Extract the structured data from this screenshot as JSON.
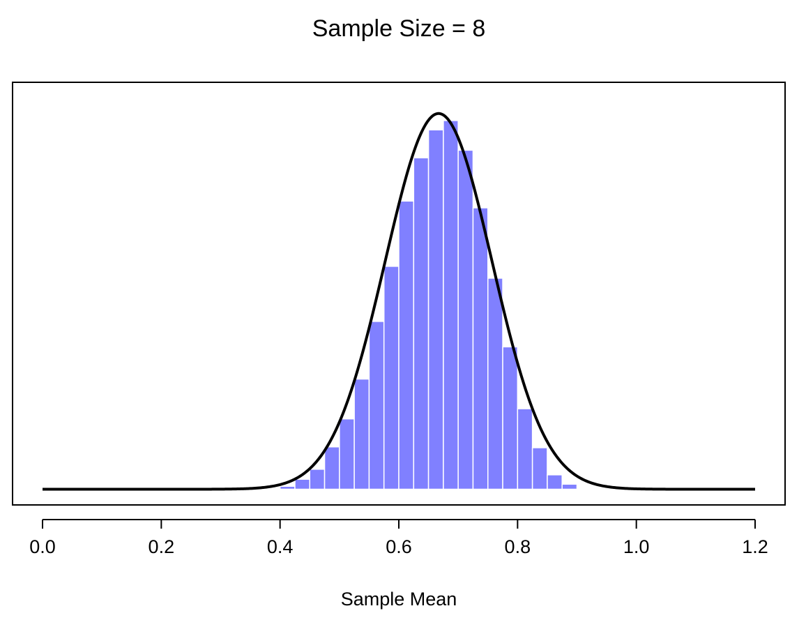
{
  "chart_data": {
    "type": "bar",
    "title": "Sample Size = 8",
    "xlabel": "Sample Mean",
    "ylabel": "",
    "xlim": [
      0,
      1.2
    ],
    "ylim": [
      0,
      4.62
    ],
    "x_ticks": [
      "0.0",
      "0.2",
      "0.4",
      "0.6",
      "0.8",
      "1.0",
      "1.2"
    ],
    "y_axis_shown": false,
    "grid": false,
    "bin_width": 0.025,
    "bin_starts": [
      0.4,
      0.425,
      0.45,
      0.475,
      0.5,
      0.525,
      0.55,
      0.575,
      0.6,
      0.625,
      0.65,
      0.675,
      0.7,
      0.725,
      0.75,
      0.775,
      0.8,
      0.825,
      0.85,
      0.875
    ],
    "values": [
      0.035,
      0.118,
      0.236,
      0.5,
      0.83,
      1.3,
      1.98,
      2.63,
      3.4,
      3.91,
      4.24,
      4.35,
      4.0,
      3.32,
      2.49,
      1.68,
      0.95,
      0.49,
      0.17,
      0.06
    ],
    "bar_color": "#8080ff",
    "bar_border_color": "#ffffff",
    "curve": {
      "type": "normal density",
      "mean": 0.667,
      "sd": 0.09,
      "range": [
        0,
        1.2
      ],
      "color": "#000000"
    }
  }
}
